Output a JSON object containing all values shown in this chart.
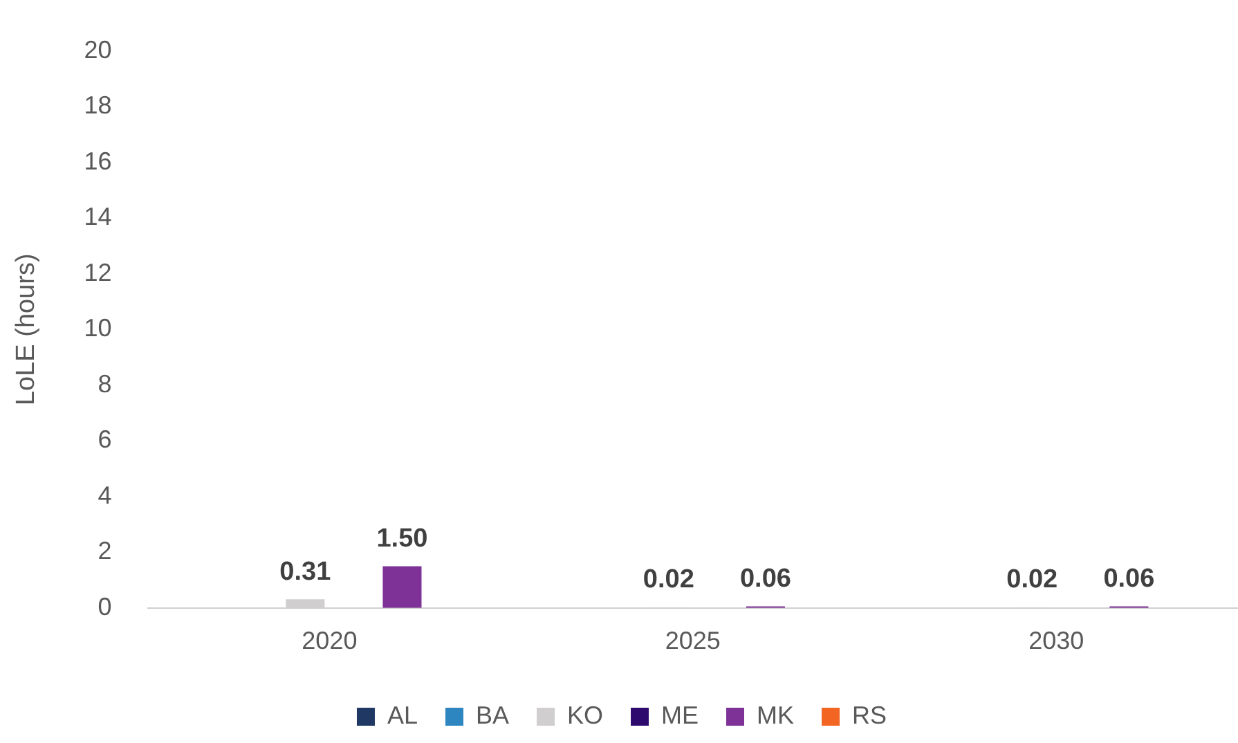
{
  "chart_data": {
    "type": "bar",
    "ylabel": "LoLE (hours)",
    "categories": [
      "2020",
      "2025",
      "2030"
    ],
    "series": [
      {
        "name": "AL",
        "color": "#1f3864",
        "values": [
          0,
          0,
          0
        ]
      },
      {
        "name": "BA",
        "color": "#2e86c1",
        "values": [
          0,
          0,
          0
        ]
      },
      {
        "name": "KO",
        "color": "#d0cece",
        "values": [
          0.31,
          0.02,
          0.02
        ],
        "value_labels": [
          "0.31",
          "0.02",
          "0.02"
        ]
      },
      {
        "name": "ME",
        "color": "#2e0a6e",
        "values": [
          0,
          0,
          0
        ]
      },
      {
        "name": "MK",
        "color": "#7e3297",
        "values": [
          1.5,
          0.06,
          0.06
        ],
        "value_labels": [
          "1.50",
          "0.06",
          "0.06"
        ]
      },
      {
        "name": "RS",
        "color": "#f26522",
        "values": [
          0,
          0,
          0
        ]
      }
    ],
    "ylim": [
      0,
      20
    ],
    "yticks": [
      0,
      2,
      4,
      6,
      8,
      10,
      12,
      14,
      16,
      18,
      20
    ],
    "grid": false,
    "legend": "bottom"
  }
}
